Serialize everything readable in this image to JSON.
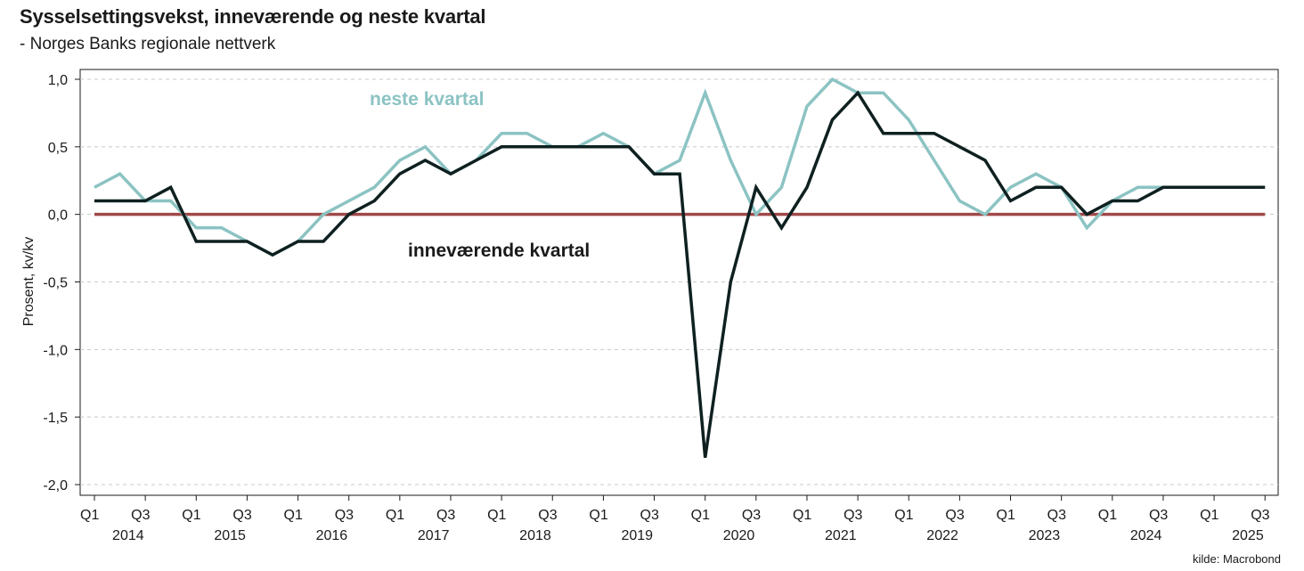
{
  "header": {
    "title": "Sysselsettingsvekst, inneværende og neste kvartal",
    "subtitle": "- Norges Banks regionale nettverk"
  },
  "source": "kilde: Macrobond",
  "chart_data": {
    "type": "line",
    "title": "Sysselsettingsvekst, inneværende og neste kvartal",
    "subtitle": "- Norges Banks regionale nettverk",
    "xlabel": "",
    "ylabel": "Prosent, kv/kv",
    "ylim": [
      -2.0,
      1.0
    ],
    "yticks": [
      1.0,
      0.5,
      0.0,
      -0.5,
      -1.0,
      -1.5,
      -2.0
    ],
    "ytick_labels": [
      "1,0",
      "0,5",
      "0,0",
      "-0,5",
      "-1,0",
      "-1,5",
      "-2,0"
    ],
    "grid": true,
    "x": [
      "2014Q1",
      "2014Q2",
      "2014Q3",
      "2014Q4",
      "2015Q1",
      "2015Q2",
      "2015Q3",
      "2015Q4",
      "2016Q1",
      "2016Q2",
      "2016Q3",
      "2016Q4",
      "2017Q1",
      "2017Q2",
      "2017Q3",
      "2017Q4",
      "2018Q1",
      "2018Q2",
      "2018Q3",
      "2018Q4",
      "2019Q1",
      "2019Q2",
      "2019Q3",
      "2019Q4",
      "2020Q1",
      "2020Q2",
      "2020Q3",
      "2020Q4",
      "2021Q1",
      "2021Q2",
      "2021Q3",
      "2021Q4",
      "2022Q1",
      "2022Q2",
      "2022Q3",
      "2022Q4",
      "2023Q1",
      "2023Q2",
      "2023Q3",
      "2023Q4",
      "2024Q1",
      "2024Q2",
      "2024Q3",
      "2024Q4",
      "2025Q1",
      "2025Q2",
      "2025Q3"
    ],
    "x_tick_labels": [
      "Q1",
      "Q3",
      "Q1",
      "Q3",
      "Q1",
      "Q3",
      "Q1",
      "Q3",
      "Q1",
      "Q3",
      "Q1",
      "Q3",
      "Q1",
      "Q3",
      "Q1",
      "Q3",
      "Q1",
      "Q3",
      "Q1",
      "Q3",
      "Q1",
      "Q3",
      "Q1",
      "Q3"
    ],
    "year_labels": [
      "2014",
      "2015",
      "2016",
      "2017",
      "2018",
      "2019",
      "2020",
      "2021",
      "2022",
      "2023",
      "2024",
      "2025"
    ],
    "series": [
      {
        "name": "inneværende kvartal",
        "color": "#0f2020",
        "values": [
          0.1,
          0.1,
          0.1,
          0.2,
          -0.2,
          -0.2,
          -0.2,
          -0.3,
          -0.2,
          -0.2,
          0.0,
          0.1,
          0.3,
          0.4,
          0.3,
          0.4,
          0.5,
          0.5,
          0.5,
          0.5,
          0.5,
          0.5,
          0.3,
          0.3,
          -1.8,
          -0.5,
          0.2,
          -0.1,
          0.2,
          0.7,
          0.9,
          0.6,
          0.6,
          0.6,
          0.5,
          0.4,
          0.1,
          0.2,
          0.2,
          0.0,
          0.1,
          0.1,
          0.2,
          0.2,
          0.2,
          0.2,
          0.2
        ]
      },
      {
        "name": "neste kvartal",
        "color": "#8cc3c3",
        "values": [
          0.2,
          0.3,
          0.1,
          0.1,
          -0.1,
          -0.1,
          -0.2,
          -0.3,
          -0.2,
          0.0,
          0.1,
          0.2,
          0.4,
          0.5,
          0.3,
          0.4,
          0.6,
          0.6,
          0.5,
          0.5,
          0.6,
          0.5,
          0.3,
          0.4,
          0.9,
          0.4,
          0.0,
          0.2,
          0.8,
          1.0,
          0.9,
          0.9,
          0.7,
          0.4,
          0.1,
          0.0,
          0.2,
          0.3,
          0.2,
          -0.1,
          0.1,
          0.2,
          0.2,
          0.2,
          0.2,
          0.2,
          0.2
        ]
      }
    ],
    "reference_line": {
      "value": 0.0,
      "color": "#a04848"
    }
  }
}
